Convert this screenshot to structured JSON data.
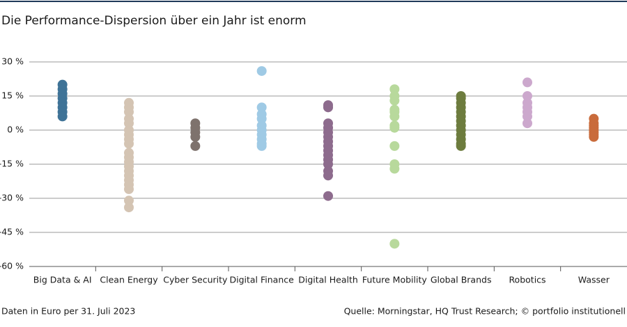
{
  "chart_data": {
    "type": "strip",
    "title": "Die Performance-Dispersion über ein Jahr ist enorm",
    "footnote": "Daten in Euro per 31. Juli 2023",
    "source": "Quelle: Morningstar, HQ Trust Research; © portfolio institutionell",
    "ylim": [
      -60,
      30
    ],
    "yticks": [
      {
        "value": -60,
        "label": "-60 %"
      },
      {
        "value": -45,
        "label": "-45 %"
      },
      {
        "value": -30,
        "label": "-30 %"
      },
      {
        "value": -15,
        "label": "-15 %"
      },
      {
        "value": 0,
        "label": "0 %"
      },
      {
        "value": 15,
        "label": "15 %"
      },
      {
        "value": 30,
        "label": "30 %"
      }
    ],
    "grid": true,
    "series": [
      {
        "name": "Big Data & AI",
        "color": "#3f7397",
        "values": [
          20,
          18,
          16,
          14,
          12,
          10,
          8,
          6
        ]
      },
      {
        "name": "Clean Energy",
        "color": "#d4c4b3",
        "values": [
          12,
          10,
          8,
          5,
          3,
          0,
          -2,
          -4,
          -6,
          -10,
          -12,
          -14,
          -16,
          -18,
          -20,
          -22,
          -24,
          -26,
          -31,
          -34
        ]
      },
      {
        "name": "Cyber Security",
        "color": "#7e726d",
        "values": [
          3,
          1,
          -1,
          -3,
          -7
        ]
      },
      {
        "name": "Digital Finance",
        "color": "#9fcae5",
        "values": [
          26,
          10,
          7,
          5,
          2,
          0,
          -2,
          -4,
          -6,
          -7
        ]
      },
      {
        "name": "Digital Health",
        "color": "#8d6b8d",
        "values": [
          11,
          10,
          3,
          1,
          -1,
          -3,
          -5,
          -7,
          -9,
          -11,
          -13,
          -15,
          -18,
          -20,
          -29
        ]
      },
      {
        "name": "Future Mobility",
        "color": "#b8d99c",
        "values": [
          18,
          15,
          13,
          9,
          8,
          6,
          2,
          1,
          -7,
          -15,
          -17,
          -50
        ]
      },
      {
        "name": "Global Brands",
        "color": "#6d7c3e",
        "values": [
          15,
          14,
          12,
          10,
          8,
          6,
          4,
          2,
          0,
          -2,
          -4,
          -6,
          -7
        ]
      },
      {
        "name": "Robotics",
        "color": "#cca8cd",
        "values": [
          21,
          15,
          12,
          10,
          8,
          6,
          3
        ]
      },
      {
        "name": "Wasser",
        "color": "#c96b3b",
        "values": [
          5,
          3,
          2,
          1,
          0,
          -1,
          -2,
          -3
        ]
      }
    ]
  }
}
